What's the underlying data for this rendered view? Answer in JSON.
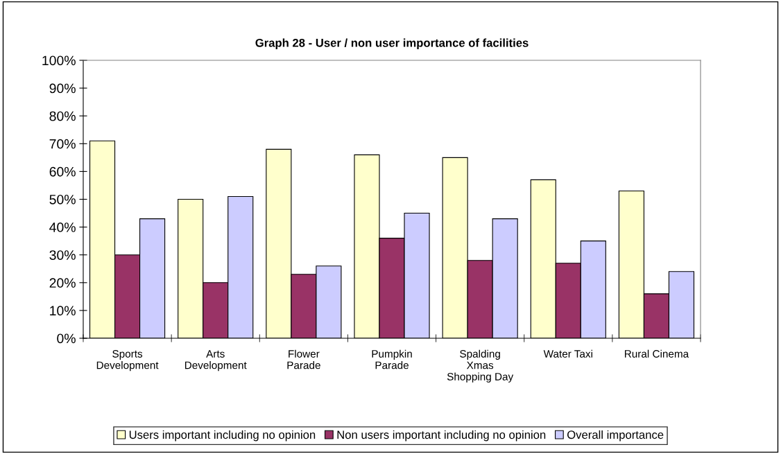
{
  "chart_data": {
    "type": "bar",
    "title": "Graph 28 - User / non user importance of facilities",
    "categories": [
      "Sports\nDevelopment",
      "Arts\nDevelopment",
      "Flower\nParade",
      "Pumpkin\nParade",
      "Spalding\nXmas\nShopping Day",
      "Water Taxi",
      "Rural Cinema"
    ],
    "series": [
      {
        "name": "Users important including no opinion",
        "color": "#ffffcc",
        "values": [
          71,
          50,
          68,
          66,
          65,
          57,
          53
        ]
      },
      {
        "name": "Non users important including no opinion",
        "color": "#993366",
        "values": [
          30,
          20,
          23,
          36,
          28,
          27,
          16
        ]
      },
      {
        "name": "Overall importance",
        "color": "#ccccff",
        "values": [
          43,
          51,
          26,
          45,
          43,
          35,
          24
        ]
      }
    ],
    "ylim": [
      0,
      100
    ],
    "yticks": [
      {
        "value": 0,
        "label": "0%"
      },
      {
        "value": 10,
        "label": "10%"
      },
      {
        "value": 20,
        "label": "20%"
      },
      {
        "value": 30,
        "label": "30%"
      },
      {
        "value": 40,
        "label": "40%"
      },
      {
        "value": 50,
        "label": "50%"
      },
      {
        "value": 60,
        "label": "60%"
      },
      {
        "value": 70,
        "label": "70%"
      },
      {
        "value": 80,
        "label": "80%"
      },
      {
        "value": 90,
        "label": "90%"
      },
      {
        "value": 100,
        "label": "100%"
      }
    ],
    "grid": false,
    "legend": "bottom"
  }
}
